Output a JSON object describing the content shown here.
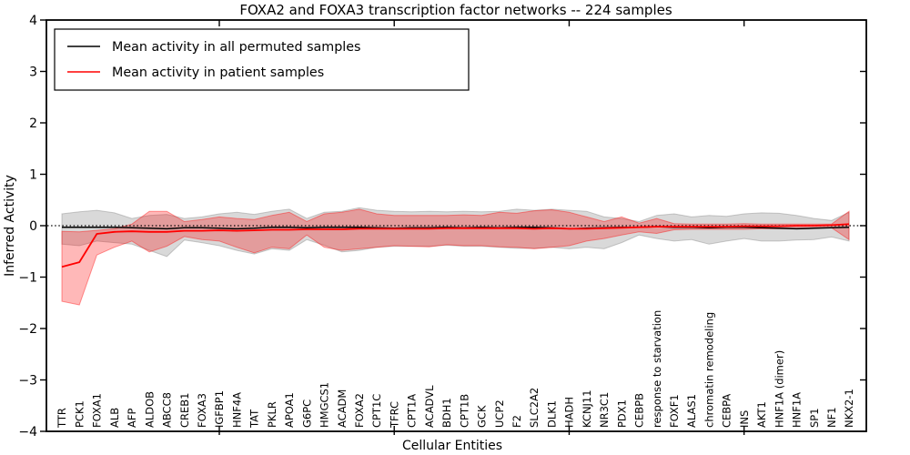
{
  "chart_data": {
    "type": "line",
    "title": "FOXA2 and FOXA3 transcription factor networks -- 224 samples",
    "xlabel": "Cellular Entities",
    "ylabel": "Inferred Activity",
    "ylim": [
      -4,
      4
    ],
    "yticks": [
      4,
      3,
      2,
      1,
      0,
      -1,
      -2,
      -3,
      -4
    ],
    "ytick_labels": [
      "4",
      "3",
      "2",
      "1",
      "0",
      "−1",
      "−2",
      "−3",
      "−4"
    ],
    "x_major_tick_indices": [
      9,
      19,
      29,
      39
    ],
    "grid": false,
    "zero_line_style": "dotted",
    "legend_position": "upper left",
    "background_color": "#ffffff",
    "categories": [
      "TTR",
      "PCK1",
      "FOXA1",
      "ALB",
      "AFP",
      "ALDOB",
      "ABCC8",
      "CREB1",
      "FOXA3",
      "IGFBP1",
      "HNF4A",
      "TAT",
      "PKLR",
      "APOA1",
      "G6PC",
      "HMGCS1",
      "ACADM",
      "FOXA2",
      "CPT1C",
      "TFRC",
      "CPT1A",
      "ACADVL",
      "BDH1",
      "CPT1B",
      "GCK",
      "UCP2",
      "F2",
      "SLC2A2",
      "DLK1",
      "HADH",
      "KCNJ11",
      "NR3C1",
      "PDX1",
      "CEBPB",
      "response to starvation",
      "FOXF1",
      "ALAS1",
      "chromatin remodeling",
      "CEBPA",
      "INS",
      "AKT1",
      "HNF1A (dimer)",
      "HNF1A",
      "SP1",
      "NF1",
      "NKX2-1"
    ],
    "series": [
      {
        "name": "Mean activity in all permuted samples",
        "color": "#000000",
        "line_width": 1.5,
        "band_fill": "rgba(128,128,128,0.30)",
        "band_stroke": "rgba(128,128,128,0.40)",
        "values": [
          -0.03,
          -0.03,
          -0.03,
          -0.03,
          -0.04,
          -0.05,
          -0.06,
          -0.04,
          -0.04,
          -0.05,
          -0.06,
          -0.05,
          -0.03,
          -0.03,
          -0.04,
          -0.03,
          -0.03,
          -0.03,
          -0.04,
          -0.05,
          -0.04,
          -0.04,
          -0.03,
          -0.04,
          -0.03,
          -0.04,
          -0.03,
          -0.03,
          -0.04,
          -0.06,
          -0.05,
          -0.04,
          -0.03,
          -0.03,
          -0.02,
          -0.03,
          -0.03,
          -0.04,
          -0.03,
          -0.03,
          -0.04,
          -0.05,
          -0.06,
          -0.05,
          -0.04,
          -0.03
        ],
        "band_upper": [
          0.23,
          0.27,
          0.3,
          0.25,
          0.14,
          0.2,
          0.22,
          0.14,
          0.17,
          0.23,
          0.26,
          0.22,
          0.28,
          0.32,
          0.14,
          0.26,
          0.28,
          0.35,
          0.3,
          0.28,
          0.27,
          0.28,
          0.27,
          0.28,
          0.27,
          0.28,
          0.32,
          0.3,
          0.32,
          0.3,
          0.28,
          0.17,
          0.14,
          0.08,
          0.2,
          0.23,
          0.17,
          0.2,
          0.18,
          0.23,
          0.25,
          0.24,
          0.2,
          0.14,
          0.1,
          0.26
        ],
        "band_lower": [
          -0.36,
          -0.39,
          -0.3,
          -0.33,
          -0.36,
          -0.48,
          -0.6,
          -0.28,
          -0.33,
          -0.39,
          -0.48,
          -0.55,
          -0.45,
          -0.48,
          -0.27,
          -0.38,
          -0.51,
          -0.48,
          -0.42,
          -0.4,
          -0.4,
          -0.4,
          -0.38,
          -0.4,
          -0.4,
          -0.42,
          -0.44,
          -0.44,
          -0.42,
          -0.45,
          -0.42,
          -0.45,
          -0.33,
          -0.18,
          -0.25,
          -0.3,
          -0.27,
          -0.36,
          -0.3,
          -0.25,
          -0.3,
          -0.3,
          -0.28,
          -0.27,
          -0.22,
          -0.3
        ]
      },
      {
        "name": "Mean activity in patient samples",
        "color": "#ff0000",
        "line_width": 1.8,
        "band_fill": "rgba(255,0,0,0.28)",
        "band_stroke": "rgba(255,0,0,0.40)",
        "values": [
          -0.8,
          -0.71,
          -0.16,
          -0.12,
          -0.11,
          -0.12,
          -0.12,
          -0.1,
          -0.1,
          -0.09,
          -0.1,
          -0.09,
          -0.08,
          -0.08,
          -0.07,
          -0.07,
          -0.07,
          -0.06,
          -0.06,
          -0.06,
          -0.06,
          -0.06,
          -0.05,
          -0.05,
          -0.05,
          -0.05,
          -0.05,
          -0.06,
          -0.05,
          -0.06,
          -0.06,
          -0.05,
          -0.04,
          -0.03,
          -0.02,
          -0.02,
          -0.02,
          -0.02,
          -0.02,
          -0.01,
          -0.01,
          -0.01,
          0.0,
          0.0,
          0.01,
          0.03
        ],
        "band_upper": [
          -0.11,
          -0.12,
          -0.09,
          -0.06,
          0.03,
          0.28,
          0.28,
          0.08,
          0.12,
          0.17,
          0.14,
          0.12,
          0.2,
          0.26,
          0.08,
          0.23,
          0.26,
          0.32,
          0.23,
          0.2,
          0.2,
          0.2,
          0.2,
          0.21,
          0.2,
          0.26,
          0.24,
          0.29,
          0.31,
          0.26,
          0.17,
          0.08,
          0.17,
          0.05,
          0.14,
          0.04,
          0.03,
          0.03,
          0.03,
          0.04,
          0.03,
          0.03,
          0.03,
          0.03,
          0.03,
          0.28
        ],
        "band_lower": [
          -1.47,
          -1.54,
          -0.57,
          -0.42,
          -0.3,
          -0.51,
          -0.4,
          -0.21,
          -0.27,
          -0.3,
          -0.42,
          -0.53,
          -0.42,
          -0.45,
          -0.18,
          -0.42,
          -0.48,
          -0.45,
          -0.42,
          -0.39,
          -0.4,
          -0.41,
          -0.37,
          -0.39,
          -0.39,
          -0.41,
          -0.42,
          -0.45,
          -0.42,
          -0.39,
          -0.3,
          -0.25,
          -0.18,
          -0.12,
          -0.15,
          -0.08,
          -0.07,
          -0.07,
          -0.07,
          -0.07,
          -0.06,
          -0.06,
          -0.06,
          -0.05,
          -0.04,
          -0.27
        ]
      }
    ]
  }
}
